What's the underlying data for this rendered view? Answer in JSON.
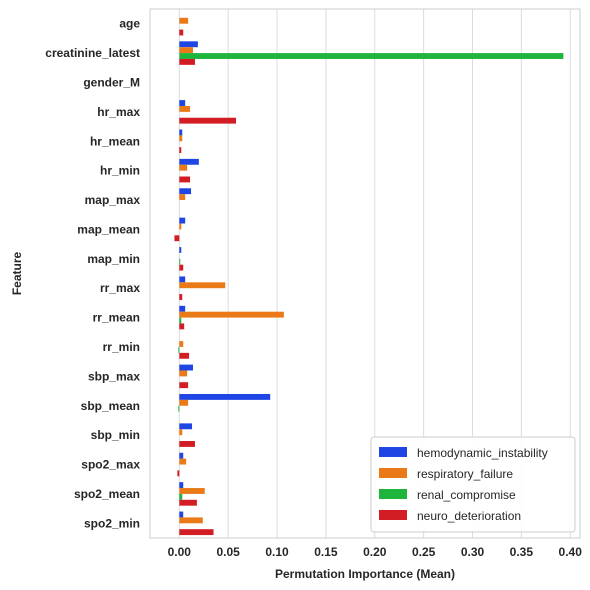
{
  "chart_data": {
    "type": "bar",
    "orientation": "horizontal",
    "xlabel": "Permutation Importance (Mean)",
    "ylabel": "Feature",
    "xlim": [
      -0.03,
      0.41
    ],
    "xticks": [
      "0.00",
      "0.05",
      "0.10",
      "0.15",
      "0.20",
      "0.25",
      "0.30",
      "0.35",
      "0.40"
    ],
    "grid": "vertical",
    "legend_position": "bottom-right",
    "categories": [
      "age",
      "creatinine_latest",
      "gender_M",
      "hr_max",
      "hr_mean",
      "hr_min",
      "map_max",
      "map_mean",
      "map_min",
      "rr_max",
      "rr_mean",
      "rr_min",
      "sbp_max",
      "sbp_mean",
      "sbp_min",
      "spo2_max",
      "spo2_mean",
      "spo2_min"
    ],
    "series": [
      {
        "name": "hemodynamic_instability",
        "color": "#1f46e5",
        "values": [
          0.0,
          0.019,
          0.0,
          0.006,
          0.003,
          0.02,
          0.012,
          0.006,
          0.002,
          0.006,
          0.006,
          0.0,
          0.014,
          0.093,
          0.013,
          0.004,
          0.004,
          0.004
        ]
      },
      {
        "name": "respiratory_failure",
        "color": "#e97a17",
        "values": [
          0.009,
          0.014,
          0.0,
          0.011,
          0.003,
          0.008,
          0.006,
          0.002,
          0.0,
          0.047,
          0.107,
          0.004,
          0.008,
          0.009,
          0.003,
          0.007,
          0.026,
          0.024
        ]
      },
      {
        "name": "renal_compromise",
        "color": "#1fb53c",
        "values": [
          0.0,
          0.393,
          0.0,
          0.0,
          0.0,
          0.0,
          0.0,
          0.0,
          0.001,
          0.0,
          0.002,
          -0.001,
          0.0,
          -0.001,
          0.0,
          0.0,
          0.003,
          0.0
        ]
      },
      {
        "name": "neuro_deterioration",
        "color": "#d11d23",
        "values": [
          0.004,
          0.016,
          0.0,
          0.058,
          0.002,
          0.011,
          0.0,
          -0.005,
          0.004,
          0.003,
          0.005,
          0.01,
          0.009,
          0.0,
          0.016,
          -0.002,
          0.018,
          0.035
        ]
      }
    ]
  }
}
